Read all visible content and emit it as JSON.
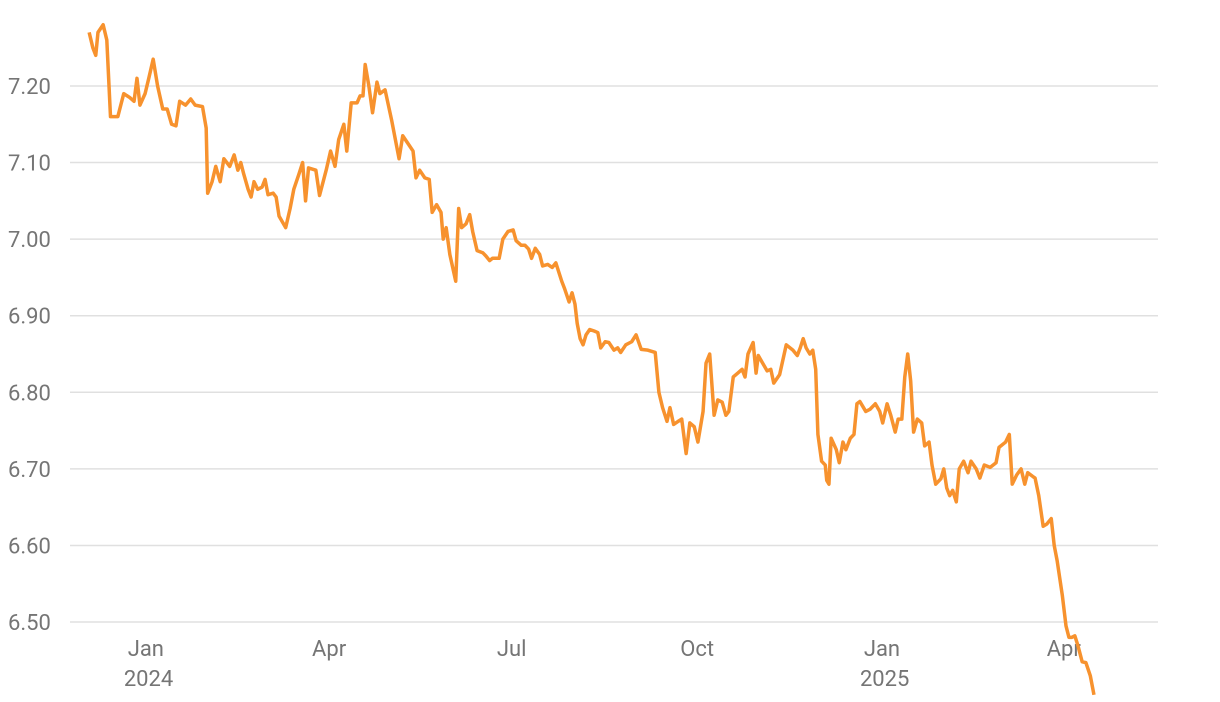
{
  "chart_data": {
    "type": "line",
    "color": "#f7922e",
    "grid": true,
    "xlim": [
      2023.897,
      2025.375
    ],
    "ylim": [
      6.4,
      7.3
    ],
    "xticks": [
      {
        "value": 2024,
        "label": "Jan 2024"
      },
      {
        "value": 2024.249,
        "label": "Apr"
      },
      {
        "value": 2024.497,
        "label": "Jul"
      },
      {
        "value": 2024.749,
        "label": "Oct"
      },
      {
        "value": 2025,
        "label": "Jan 2025"
      },
      {
        "value": 2025.247,
        "label": "Apr"
      }
    ],
    "yticks": [
      {
        "value": 6.5,
        "label": "6.50"
      },
      {
        "value": 6.6,
        "label": "6.60"
      },
      {
        "value": 6.7,
        "label": "6.70"
      },
      {
        "value": 6.8,
        "label": "6.80"
      },
      {
        "value": 6.9,
        "label": "6.90"
      },
      {
        "value": 7.0,
        "label": "7.00"
      },
      {
        "value": 7.1,
        "label": "7.10"
      },
      {
        "value": 7.2,
        "label": "7.20"
      }
    ],
    "x": [
      2023.923,
      2023.928,
      2023.932,
      2023.935,
      2023.942,
      2023.947,
      2023.952,
      2023.962,
      2023.966,
      2023.97,
      2023.978,
      2023.984,
      2023.988,
      2023.992,
      2023.999,
      2024.004,
      2024.01,
      2024.016,
      2024.023,
      2024.029,
      2024.035,
      2024.041,
      2024.046,
      2024.054,
      2024.061,
      2024.067,
      2024.077,
      2024.082,
      2024.084,
      2024.09,
      2024.095,
      2024.101,
      2024.106,
      2024.114,
      2024.12,
      2024.125,
      2024.129,
      2024.133,
      2024.139,
      2024.143,
      2024.147,
      2024.152,
      2024.158,
      2024.162,
      2024.166,
      2024.173,
      2024.177,
      2024.181,
      2024.19,
      2024.196,
      2024.201,
      2024.208,
      2024.213,
      2024.217,
      2024.221,
      2024.231,
      2024.236,
      2024.245,
      2024.251,
      2024.257,
      2024.262,
      2024.269,
      2024.273,
      2024.279,
      2024.287,
      2024.291,
      2024.295,
      2024.298,
      2024.303,
      2024.308,
      2024.314,
      2024.318,
      2024.325,
      2024.334,
      2024.34,
      2024.344,
      2024.349,
      2024.356,
      2024.363,
      2024.367,
      2024.372,
      2024.379,
      2024.385,
      2024.389,
      2024.395,
      2024.401,
      2024.404,
      2024.408,
      2024.413,
      2024.421,
      2024.425,
      2024.429,
      2024.435,
      2024.44,
      2024.444,
      2024.45,
      2024.458,
      2024.462,
      2024.467,
      2024.471,
      2024.48,
      2024.485,
      2024.492,
      2024.499,
      2024.503,
      2024.51,
      2024.515,
      2024.52,
      2024.524,
      2024.529,
      2024.535,
      2024.539,
      2024.546,
      2024.552,
      2024.557,
      2024.565,
      2024.569,
      2024.575,
      2024.579,
      2024.583,
      2024.586,
      2024.59,
      2024.594,
      2024.598,
      2024.603,
      2024.609,
      2024.614,
      2024.618,
      2024.624,
      2024.629,
      2024.636,
      2024.641,
      2024.645,
      2024.652,
      2024.66,
      2024.666,
      2024.673,
      2024.682,
      2024.692,
      2024.697,
      2024.702,
      2024.708,
      2024.712,
      2024.717,
      2024.723,
      2024.728,
      2024.734,
      2024.739,
      2024.745,
      2024.75,
      2024.757,
      2024.761,
      2024.766,
      2024.772,
      2024.777,
      2024.783,
      2024.788,
      2024.792,
      2024.798,
      2024.804,
      2024.81,
      2024.814,
      2024.818,
      2024.825,
      2024.829,
      2024.832,
      2024.838,
      2024.844,
      2024.849,
      2024.853,
      2024.861,
      2024.87,
      2024.879,
      2024.885,
      2024.889,
      2024.893,
      2024.897,
      2024.902,
      2024.906,
      2024.91,
      2024.913,
      2024.918,
      2024.923,
      2024.925,
      2024.928,
      2024.931,
      2024.938,
      2024.942,
      2024.947,
      2024.951,
      2024.957,
      2024.962,
      2024.966,
      2024.97,
      2024.978,
      2024.984,
      2024.991,
      2024.997,
      2025.001,
      2025.007,
      2025.012,
      2025.018,
      2025.022,
      2025.027,
      2025.031,
      2025.035,
      2025.039,
      2025.043,
      2025.048,
      2025.054,
      2025.058,
      2025.064,
      2025.068,
      2025.073,
      2025.08,
      2025.084,
      2025.088,
      2025.092,
      2025.096,
      2025.101,
      2025.105,
      2025.111,
      2025.117,
      2025.121,
      2025.128,
      2025.133,
      2025.139,
      2025.147,
      2025.155,
      2025.159,
      2025.168,
      2025.173,
      2025.177,
      2025.183,
      2025.189,
      2025.194,
      2025.198,
      2025.205,
      2025.208,
      2025.213,
      2025.219,
      2025.224,
      2025.23,
      2025.234,
      2025.238,
      2025.245,
      2025.25,
      2025.254,
      2025.258,
      2025.262,
      2025.266,
      2025.272,
      2025.277,
      2025.283,
      2025.288
    ],
    "values": [
      7.27,
      7.25,
      7.24,
      7.27,
      7.28,
      7.26,
      7.16,
      7.16,
      7.175,
      7.19,
      7.185,
      7.18,
      7.21,
      7.175,
      7.19,
      7.21,
      7.235,
      7.2,
      7.17,
      7.17,
      7.15,
      7.148,
      7.18,
      7.175,
      7.183,
      7.175,
      7.173,
      7.145,
      7.06,
      7.075,
      7.095,
      7.075,
      7.105,
      7.095,
      7.11,
      7.09,
      7.1,
      7.085,
      7.065,
      7.055,
      7.075,
      7.065,
      7.068,
      7.078,
      7.058,
      7.06,
      7.055,
      7.03,
      7.015,
      7.04,
      7.065,
      7.085,
      7.1,
      7.05,
      7.093,
      7.09,
      7.057,
      7.09,
      7.115,
      7.095,
      7.13,
      7.15,
      7.115,
      7.178,
      7.178,
      7.187,
      7.187,
      7.228,
      7.2,
      7.165,
      7.205,
      7.19,
      7.195,
      7.155,
      7.125,
      7.105,
      7.135,
      7.125,
      7.115,
      7.08,
      7.09,
      7.08,
      7.078,
      7.035,
      7.045,
      7.035,
      7.0,
      7.015,
      6.98,
      6.945,
      7.04,
      7.015,
      7.02,
      7.032,
      7.01,
      6.985,
      6.982,
      6.978,
      6.972,
      6.975,
      6.975,
      7.0,
      7.01,
      7.012,
      6.998,
      6.992,
      6.992,
      6.987,
      6.975,
      6.988,
      6.98,
      6.965,
      6.967,
      6.963,
      6.969,
      6.945,
      6.935,
      6.918,
      6.93,
      6.915,
      6.89,
      6.87,
      6.862,
      6.875,
      6.882,
      6.88,
      6.878,
      6.858,
      6.866,
      6.865,
      6.855,
      6.858,
      6.852,
      6.862,
      6.866,
      6.875,
      6.856,
      6.855,
      6.852,
      6.8,
      6.78,
      6.762,
      6.78,
      6.758,
      6.762,
      6.765,
      6.72,
      6.76,
      6.755,
      6.735,
      6.775,
      6.838,
      6.85,
      6.77,
      6.79,
      6.787,
      6.77,
      6.775,
      6.82,
      6.825,
      6.83,
      6.82,
      6.85,
      6.865,
      6.825,
      6.848,
      6.838,
      6.828,
      6.83,
      6.812,
      6.823,
      6.862,
      6.855,
      6.848,
      6.858,
      6.87,
      6.858,
      6.85,
      6.855,
      6.83,
      6.745,
      6.71,
      6.705,
      6.685,
      6.68,
      6.74,
      6.725,
      6.708,
      6.735,
      6.725,
      6.74,
      6.745,
      6.785,
      6.788,
      6.775,
      6.778,
      6.785,
      6.775,
      6.76,
      6.785,
      6.77,
      6.748,
      6.765,
      6.765,
      6.82,
      6.85,
      6.815,
      6.748,
      6.765,
      6.76,
      6.73,
      6.735,
      6.705,
      6.68,
      6.687,
      6.7,
      6.675,
      6.665,
      6.672,
      6.657,
      6.7,
      6.71,
      6.695,
      6.71,
      6.7,
      6.688,
      6.705,
      6.702,
      6.708,
      6.728,
      6.735,
      6.745,
      6.68,
      6.692,
      6.7,
      6.68,
      6.695,
      6.69,
      6.688,
      6.665,
      6.625,
      6.628,
      6.635,
      6.6,
      6.58,
      6.535,
      6.495,
      6.48,
      6.48,
      6.482,
      6.47,
      6.448,
      6.447,
      6.43,
      6.405
    ]
  }
}
